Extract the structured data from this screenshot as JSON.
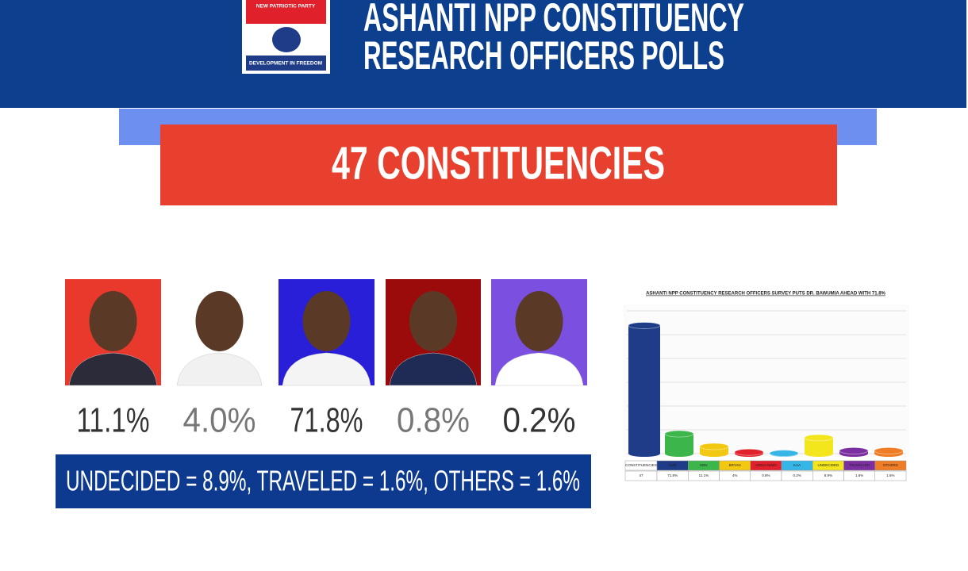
{
  "header": {
    "logo_top": "NEW PATRIOTIC PARTY",
    "logo_bottom": "DEVELOPMENT IN FREEDOM",
    "title_line1": "ASHANTI NPP CONSTITUENCY",
    "title_line2": "RESEARCH OFFICERS POLLS"
  },
  "banner": "47 CONSTITUENCIES",
  "candidates": [
    "11.1%",
    "4.0%",
    "71.8%",
    "0.8%",
    "0.2%"
  ],
  "summary": "UNDECIDED = 8.9%, TRAVELED = 1.6%, OTHERS = 1.6%",
  "chart_data": {
    "type": "bar",
    "title": "ASHANTI NPP CONSTITUENCY RESEARCH OFFICERS SURVEY PUTS DR. BAWUMIA AHEAD WITH 71.8%",
    "categories": [
      "DMB",
      "KEN",
      "BRYAN",
      "ADDAI NIMO",
      "KAA",
      "UNDECIDED",
      "TRAVELLED",
      "OTHERS"
    ],
    "values": [
      71.8,
      11.1,
      4,
      0.8,
      0.2,
      8.9,
      1.6,
      1.6
    ],
    "value_labels": [
      "71.8%",
      "11.1%",
      "4%",
      "0.8%",
      "0.2%",
      "8.9%",
      "1.6%",
      "1.6%"
    ],
    "colors": [
      "#1f3c88",
      "#3cb54a",
      "#f2c811",
      "#e0202a",
      "#35b6e6",
      "#f4e61c",
      "#7b2fa0",
      "#ee7d25"
    ],
    "ylim": [
      0,
      80
    ],
    "grid": true,
    "row_header": "CONSTITUENCIES",
    "row_label": "47"
  }
}
